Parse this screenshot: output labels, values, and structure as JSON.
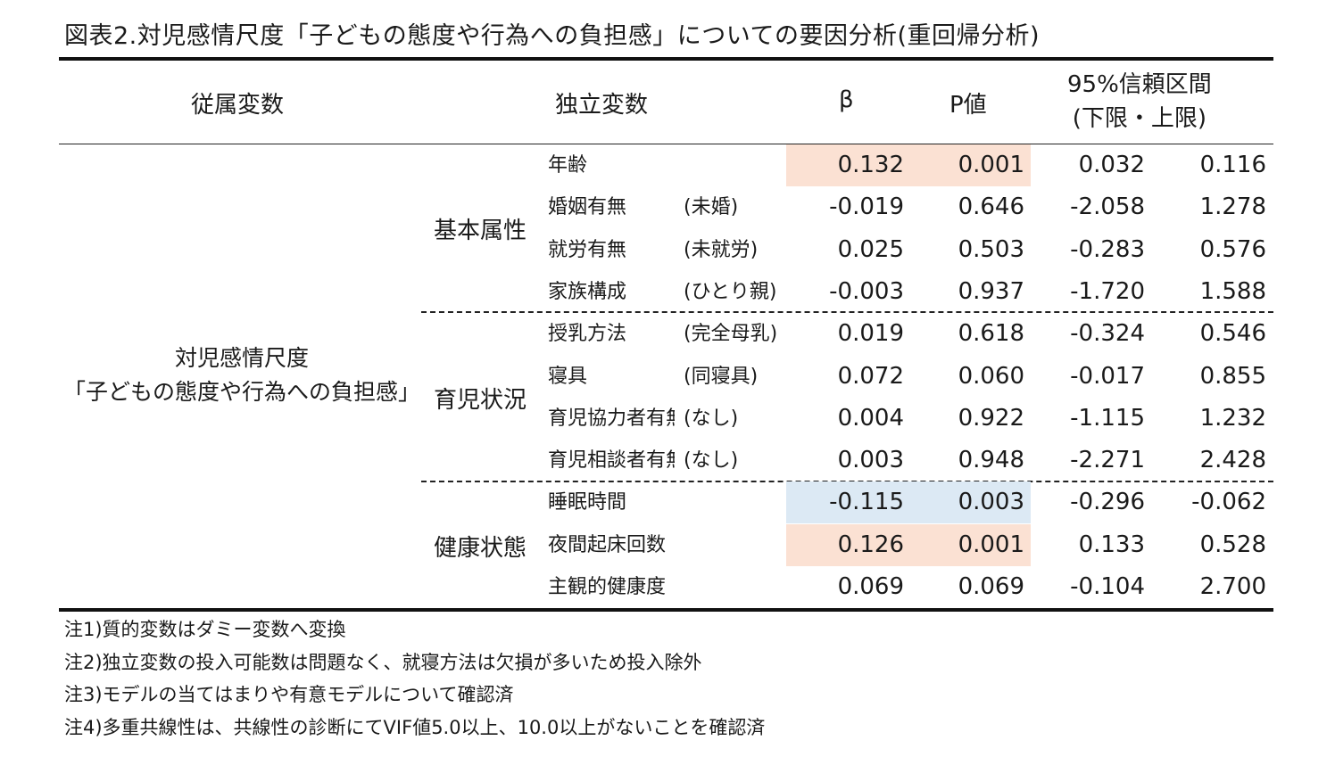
{
  "title": "図表2.対児感情尺度「子どもの態度や行為への負担感」についての要因分析(重回帰分析)",
  "headers": {
    "dependent": "従属変数",
    "independent": "独立変数",
    "beta": "β",
    "p": "P値",
    "ci_line1": "95%信頼区間",
    "ci_line2": "(下限・上限)"
  },
  "dependent_var": {
    "line1": "対児感情尺度",
    "line2": "「子どもの態度や行為への負担感」"
  },
  "groups": [
    {
      "name": "基本属性"
    },
    {
      "name": "育児状況"
    },
    {
      "name": "健康状態"
    }
  ],
  "rows": [
    {
      "var": "年齢",
      "ref": "",
      "beta": "0.132",
      "p": "0.001",
      "lo": "0.032",
      "hi": "0.116",
      "highlight": "pink"
    },
    {
      "var": "婚姻有無",
      "ref": "(未婚)",
      "beta": "-0.019",
      "p": "0.646",
      "lo": "-2.058",
      "hi": "1.278",
      "highlight": ""
    },
    {
      "var": "就労有無",
      "ref": "(未就労)",
      "beta": "0.025",
      "p": "0.503",
      "lo": "-0.283",
      "hi": "0.576",
      "highlight": ""
    },
    {
      "var": "家族構成",
      "ref": "(ひとり親)",
      "beta": "-0.003",
      "p": "0.937",
      "lo": "-1.720",
      "hi": "1.588",
      "highlight": ""
    },
    {
      "var": "授乳方法",
      "ref": "(完全母乳)",
      "beta": "0.019",
      "p": "0.618",
      "lo": "-0.324",
      "hi": "0.546",
      "highlight": ""
    },
    {
      "var": "寝具",
      "ref": "(同寝具)",
      "beta": "0.072",
      "p": "0.060",
      "lo": "-0.017",
      "hi": "0.855",
      "highlight": ""
    },
    {
      "var": "育児協力者有無",
      "ref": "(なし)",
      "beta": "0.004",
      "p": "0.922",
      "lo": "-1.115",
      "hi": "1.232",
      "highlight": ""
    },
    {
      "var": "育児相談者有無",
      "ref": "(なし)",
      "beta": "0.003",
      "p": "0.948",
      "lo": "-2.271",
      "hi": "2.428",
      "highlight": ""
    },
    {
      "var": "睡眠時間",
      "ref": "",
      "beta": "-0.115",
      "p": "0.003",
      "lo": "-0.296",
      "hi": "-0.062",
      "highlight": "blue"
    },
    {
      "var": "夜間起床回数",
      "ref": "",
      "beta": "0.126",
      "p": "0.001",
      "lo": "0.133",
      "hi": "0.528",
      "highlight": "pink"
    },
    {
      "var": "主観的健康度",
      "ref": "",
      "beta": "0.069",
      "p": "0.069",
      "lo": "-0.104",
      "hi": "2.700",
      "highlight": ""
    }
  ],
  "notes": [
    "注1)質的変数はダミー変数へ変換",
    "注2)独立変数の投入可能数は問題なく、就寝方法は欠損が多いため投入除外",
    "注3)モデルの当てはまりや有意モデルについて確認済",
    "注4)多重共線性は、共線性の診断にてVIF値5.0以上、10.0以上がないことを確認済"
  ],
  "colors": {
    "pink": "#fbe1d3",
    "blue": "#dce9f4"
  }
}
